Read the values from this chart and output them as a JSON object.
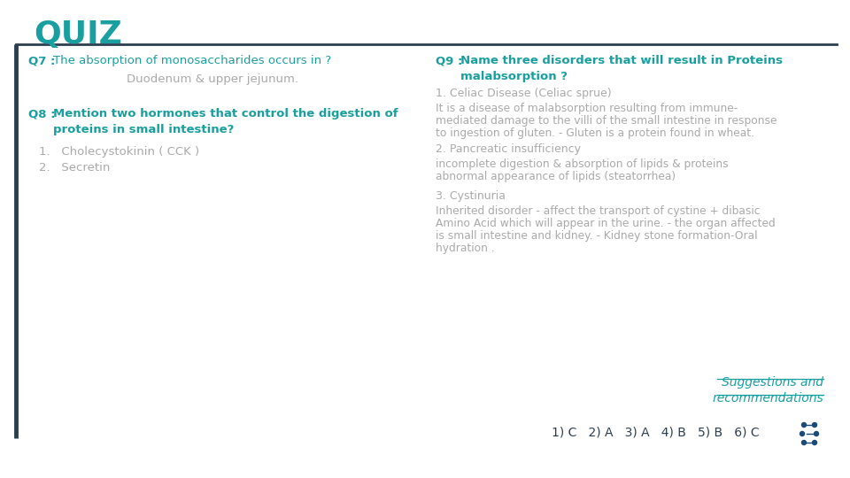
{
  "title": "QUIZ",
  "title_color": "#1a9fa0",
  "title_fontsize": 26,
  "bg_color": "#ffffff",
  "teal": "#1a9fa0",
  "gray": "#aaaaaa",
  "dark": "#2c3e50",
  "q7_label": "Q7 : ",
  "q7_text": "The absorption of monosaccharides occurs in ?",
  "q7_answer": "Duodenum & upper jejunum.",
  "q8_label": "Q8 : ",
  "q8_text1": "Mention two hormones that control the digestion of",
  "q8_text2": "proteins in small intestine?",
  "q8_ans1": "1.   Cholecystokinin ( CCK )",
  "q8_ans2": "2.   Secretin",
  "q9_label": "Q9 : ",
  "q9_text1": "Name three disorders that will result in Proteins",
  "q9_text2": "malabsorption ?",
  "q9_a1_title": "1. Celiac Disease (Celiac sprue)",
  "q9_a1_body1": "It is a disease of malabsorption resulting from immune-",
  "q9_a1_body2": "mediated damage to the villi of the small intestine in response",
  "q9_a1_body3": "to ingestion of gluten. - Gluten is a protein found in wheat.",
  "q9_a2_title": "2. Pancreatic insufficiency",
  "q9_a2_body1": "incomplete digestion & absorption of lipids & proteins",
  "q9_a2_body2": "abnormal appearance of lipids (steatorrhea)",
  "q9_a3_title": "3. Cystinuria",
  "q9_a3_body1": "Inherited disorder - affect the transport of cystine + dibasic",
  "q9_a3_body2": "Amino Acid which will appear in the urine. - the organ affected",
  "q9_a3_body3": "is small intestine and kidney. - Kidney stone formation-Oral",
  "q9_a3_body4": "hydration .",
  "suggestions_line1": "Suggestions and",
  "suggestions_line2": "recommendations",
  "answers_bottom": "1) C   2) A   3) A   4) B   5) B   6) C",
  "dna_color": "#1a4a7a"
}
